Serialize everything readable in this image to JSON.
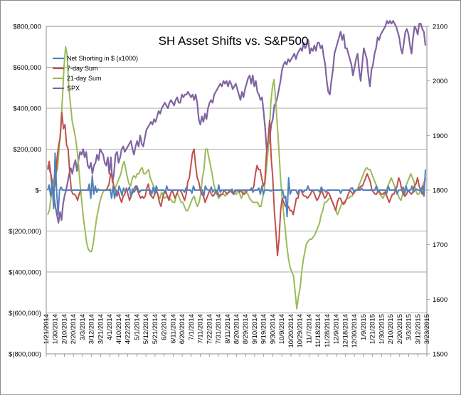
{
  "chart_data": {
    "type": "line",
    "title": "SH Asset Shifts vs. S&P500",
    "xlabel": "",
    "ylabel": "",
    "y_left_ticks": [
      "$800,000",
      "$600,000",
      "$400,000",
      "$200,000",
      "$-",
      "$(200,000)",
      "$(400,000)",
      "$(600,000)",
      "$(800,000)"
    ],
    "y_left_lim": [
      -800000,
      800000
    ],
    "y_right_ticks": [
      "2100",
      "2000",
      "1900",
      "1800",
      "1700",
      "1600",
      "1500"
    ],
    "y_right_lim": [
      1500,
      2100
    ],
    "x_tick_labels": [
      "1/21/2014",
      "1/30/2014",
      "2/10/2014",
      "2/20/2014",
      "3/3/2014",
      "3/12/2014",
      "3/21/2014",
      "4/1/2014",
      "4/10/2014",
      "4/22/2014",
      "5/1/2014",
      "5/12/2014",
      "5/21/2014",
      "6/2/2014",
      "6/11/2014",
      "6/20/2014",
      "7/1/2014",
      "7/11/2014",
      "7/22/2014",
      "7/31/2014",
      "8/11/2014",
      "8/20/2014",
      "8/29/2014",
      "9/10/2014",
      "9/19/2014",
      "9/30/2014",
      "10/9/2014",
      "10/20/2014",
      "10/29/2014",
      "11/7/2014",
      "11/18/2014",
      "11/28/2014",
      "12/9/2014",
      "12/18/2014",
      "12/30/2014",
      "1/9/2015",
      "1/21/2015",
      "1/30/2015",
      "2/10/2015",
      "2/20/2015",
      "3/3/2015",
      "3/12/2015",
      "3/23/2015"
    ],
    "grid": true,
    "legend_position": "top-left",
    "series": [
      {
        "name": "Net Shorting in $ (x1000)",
        "axis": "left",
        "color": "#4f81bd",
        "values": [
          0,
          25000,
          -30000,
          40000,
          -90000,
          180000,
          0,
          -120000,
          0,
          15000,
          0,
          0,
          0,
          0,
          0,
          0,
          0,
          0,
          0,
          0,
          0,
          0,
          0,
          0,
          0,
          0,
          0,
          0,
          30000,
          -40000,
          70000,
          -20000,
          20000,
          -10000,
          5000,
          0,
          0,
          0,
          0,
          0,
          0,
          0,
          5000,
          -40000,
          20000,
          -40000,
          0,
          -20000,
          20000,
          0,
          -25000,
          10000,
          -5000,
          0,
          0,
          15000,
          -35000,
          5000,
          -10000,
          0,
          20000,
          0,
          -10000,
          0,
          0,
          0,
          0,
          0,
          0,
          0,
          -20000,
          15000,
          -20000,
          20000,
          0,
          0,
          0,
          0,
          0,
          -15000,
          20000,
          0,
          0,
          0,
          0,
          0,
          0,
          0,
          0,
          0,
          0,
          0,
          -10000,
          10000,
          0,
          0,
          0,
          -15000,
          20000,
          0,
          0,
          0,
          0,
          0,
          0,
          -30000,
          20000,
          5000,
          0,
          0,
          15000,
          -10000,
          0,
          0,
          -20000,
          25000,
          -10000,
          0,
          0,
          0,
          0,
          0,
          0,
          0,
          5000,
          -20000,
          0,
          0,
          0,
          0,
          0,
          0,
          0,
          0,
          0,
          0,
          0,
          10000,
          -10000,
          0,
          0,
          0,
          10000,
          -20000,
          20000,
          -20000,
          0,
          0,
          0,
          0,
          -5000,
          0,
          0,
          0,
          0,
          0,
          0,
          0,
          0,
          -40000,
          -30000,
          -130000,
          60000,
          -20000,
          0,
          0,
          0,
          0,
          -20000,
          0,
          0,
          0,
          -10000,
          0,
          0,
          20000,
          0,
          0,
          0,
          0,
          0,
          0,
          0,
          -10000,
          15000,
          0,
          0,
          -10000,
          0,
          0,
          0,
          0,
          0,
          0,
          0,
          0,
          0,
          -15000,
          0,
          0,
          0,
          0,
          0,
          0,
          10000,
          10000,
          -10000,
          0,
          0,
          0,
          0,
          10000,
          0,
          0,
          0,
          0,
          0,
          0,
          0,
          0,
          0,
          20000,
          -10000,
          0,
          0,
          0,
          0,
          0,
          -15000,
          20000,
          0,
          0,
          0,
          0,
          10000,
          -20000,
          0,
          0,
          0,
          15000,
          -20000,
          20000,
          -10000,
          0,
          0,
          20000,
          -10000,
          0,
          5000,
          0,
          0,
          -5000,
          20000,
          -30000,
          100000
        ]
      },
      {
        "name": "7-day Sum",
        "axis": "left",
        "color": "#c0504d",
        "values": [
          100000,
          140000,
          80000,
          -20000,
          0,
          40000,
          160000,
          220000,
          260000,
          380000,
          300000,
          320000,
          220000,
          200000,
          90000,
          0,
          -20000,
          -20000,
          -30000,
          -50000,
          -20000,
          0,
          0,
          0,
          0,
          0,
          0,
          0,
          0,
          0,
          0,
          0,
          0,
          0,
          0,
          0,
          0,
          0,
          10000,
          30000,
          80000,
          60000,
          20000,
          0,
          -30000,
          -10000,
          -40000,
          -60000,
          -30000,
          -20000,
          10000,
          -20000,
          -50000,
          -30000,
          -10000,
          10000,
          20000,
          0,
          -20000,
          -40000,
          -30000,
          -40000,
          -30000,
          10000,
          30000,
          -20000,
          -30000,
          -40000,
          -20000,
          0,
          -20000,
          -60000,
          -80000,
          -40000,
          -10000,
          0,
          -30000,
          -50000,
          -20000,
          0,
          -20000,
          -40000,
          -20000,
          0,
          0,
          -10000,
          -30000,
          -50000,
          -20000,
          40000,
          60000,
          120000,
          180000,
          200000,
          120000,
          60000,
          40000,
          0,
          -20000,
          -30000,
          -60000,
          -40000,
          -20000,
          0,
          -20000,
          -30000,
          -20000,
          0,
          -10000,
          -30000,
          -20000,
          -20000,
          0,
          -10000,
          -20000,
          -10000,
          0,
          -10000,
          -20000,
          -10000,
          0,
          0,
          -10000,
          0,
          -20000,
          -20000,
          -10000,
          0,
          0,
          0,
          0,
          20000,
          80000,
          120000,
          100000,
          100000,
          60000,
          20000,
          40000,
          180000,
          240000,
          340000,
          160000,
          60000,
          -100000,
          -200000,
          -320000,
          -240000,
          -100000,
          -40000,
          -60000,
          -80000,
          -80000,
          -80000,
          -100000,
          -100000,
          -120000,
          -80000,
          -40000,
          -40000,
          0,
          0,
          -20000,
          -30000,
          -30000,
          -40000,
          -30000,
          -20000,
          0,
          -10000,
          -30000,
          -50000,
          -40000,
          -20000,
          0,
          -20000,
          -40000,
          -30000,
          -10000,
          -20000,
          -40000,
          -60000,
          -80000,
          -100000,
          -60000,
          -40000,
          -40000,
          -60000,
          -70000,
          -60000,
          -40000,
          -20000,
          0,
          -10000,
          -20000,
          -10000,
          0,
          0,
          10000,
          20000,
          20000,
          40000,
          60000,
          80000,
          60000,
          40000,
          0,
          -10000,
          -20000,
          -20000,
          0,
          -10000,
          -20000,
          -20000,
          -10000,
          -20000,
          -40000,
          -60000,
          -40000,
          -20000,
          -20000,
          0,
          20000,
          60000,
          40000,
          0,
          -20000,
          -30000,
          -20000,
          0,
          -10000,
          -20000,
          -10000,
          20000,
          30000,
          60000,
          20000,
          0,
          -20000,
          10000,
          60000
        ]
      },
      {
        "name": "21-day Sum",
        "axis": "left",
        "color": "#9bbb59",
        "values": [
          -120000,
          -100000,
          -40000,
          20000,
          60000,
          80000,
          100000,
          200000,
          300000,
          440000,
          600000,
          700000,
          660000,
          500000,
          420000,
          340000,
          300000,
          260000,
          200000,
          120000,
          20000,
          -60000,
          -140000,
          -200000,
          -260000,
          -290000,
          -300000,
          -300000,
          -260000,
          -200000,
          -140000,
          -100000,
          -60000,
          -30000,
          -10000,
          0,
          0,
          0,
          0,
          0,
          0,
          0,
          20000,
          40000,
          60000,
          80000,
          120000,
          140000,
          100000,
          60000,
          30000,
          20000,
          60000,
          70000,
          60000,
          80000,
          80000,
          100000,
          110000,
          80000,
          80000,
          90000,
          100000,
          60000,
          40000,
          20000,
          0,
          -10000,
          -30000,
          -40000,
          -10000,
          -30000,
          -40000,
          -30000,
          -30000,
          -40000,
          -50000,
          -60000,
          -60000,
          -20000,
          -20000,
          -40000,
          -60000,
          -60000,
          -80000,
          -100000,
          -100000,
          -80000,
          -60000,
          -40000,
          -30000,
          -60000,
          -80000,
          -60000,
          -20000,
          60000,
          100000,
          200000,
          200000,
          160000,
          120000,
          80000,
          30000,
          0,
          -20000,
          -40000,
          -30000,
          -20000,
          -20000,
          -30000,
          -20000,
          -10000,
          -10000,
          0,
          -10000,
          -20000,
          -20000,
          0,
          -20000,
          -40000,
          -20000,
          0,
          -10000,
          -20000,
          -40000,
          -50000,
          -60000,
          -60000,
          -60000,
          -60000,
          -80000,
          -80000,
          -40000,
          0,
          80000,
          160000,
          260000,
          420000,
          500000,
          540000,
          440000,
          320000,
          200000,
          60000,
          -40000,
          -120000,
          -200000,
          -280000,
          -340000,
          -380000,
          -400000,
          -420000,
          -500000,
          -580000,
          -520000,
          -480000,
          -400000,
          -340000,
          -300000,
          -260000,
          -250000,
          -240000,
          -240000,
          -230000,
          -220000,
          -200000,
          -180000,
          -160000,
          -120000,
          -100000,
          -60000,
          -60000,
          -50000,
          -40000,
          -40000,
          -60000,
          -80000,
          -100000,
          -120000,
          -100000,
          -80000,
          -60000,
          -60000,
          -50000,
          -40000,
          -40000,
          -30000,
          -30000,
          -10000,
          0,
          0,
          20000,
          40000,
          60000,
          80000,
          100000,
          110000,
          100000,
          100000,
          80000,
          60000,
          40000,
          20000,
          0,
          -20000,
          -30000,
          -40000,
          -20000,
          0,
          20000,
          40000,
          60000,
          40000,
          20000,
          0,
          -20000,
          -40000,
          -50000,
          -20000,
          0,
          20000,
          40000,
          60000,
          80000,
          60000,
          40000,
          0,
          -20000,
          -20000,
          0,
          10000,
          40000,
          50000
        ]
      },
      {
        "name": "SPX",
        "axis": "right",
        "color": "#8064a2",
        "values": [
          1845,
          1840,
          1830,
          1815,
          1790,
          1770,
          1755,
          1740,
          1760,
          1745,
          1775,
          1790,
          1800,
          1815,
          1830,
          1840,
          1830,
          1845,
          1855,
          1835,
          1855,
          1870,
          1865,
          1875,
          1860,
          1870,
          1845,
          1840,
          1850,
          1830,
          1845,
          1850,
          1865,
          1855,
          1875,
          1870,
          1865,
          1850,
          1845,
          1860,
          1830,
          1860,
          1815,
          1830,
          1865,
          1870,
          1850,
          1860,
          1875,
          1880,
          1870,
          1875,
          1880,
          1885,
          1890,
          1875,
          1865,
          1880,
          1890,
          1880,
          1900,
          1885,
          1880,
          1895,
          1910,
          1915,
          1920,
          1925,
          1920,
          1930,
          1925,
          1935,
          1945,
          1940,
          1950,
          1955,
          1960,
          1955,
          1950,
          1960,
          1965,
          1960,
          1955,
          1965,
          1970,
          1960,
          1960,
          1975,
          1970,
          1975,
          1975,
          1980,
          1975,
          1970,
          1975,
          1965,
          1975,
          1960,
          1930,
          1920,
          1935,
          1925,
          1940,
          1930,
          1950,
          1960,
          1965,
          1960,
          1975,
          1980,
          1985,
          1990,
          1995,
          1990,
          2000,
          1995,
          2000,
          1990,
          2000,
          1995,
          1985,
          1990,
          1995,
          1985,
          1975,
          1965,
          1980,
          1970,
          1985,
          1995,
          2005,
          2010,
          1995,
          2010,
          1990,
          2000,
          1980,
          1975,
          1965,
          1970,
          1945,
          1915,
          1875,
          1880,
          1895,
          1920,
          1930,
          1955,
          1960,
          1970,
          1985,
          2000,
          2020,
          2030,
          2035,
          2030,
          2040,
          2035,
          2040,
          2045,
          2050,
          2040,
          2050,
          2055,
          2060,
          2055,
          2070,
          2060,
          2065,
          2075,
          2050,
          2060,
          2055,
          2065,
          2055,
          2070,
          2070,
          2060,
          2065,
          2045,
          2030,
          2000,
          1980,
          1975,
          2000,
          2020,
          2050,
          2060,
          2070,
          2080,
          2090,
          2075,
          2085,
          2060,
          2060,
          2050,
          2040,
          2030,
          2010,
          2025,
          2040,
          2050,
          2020,
          2000,
          2030,
          2060,
          2050,
          2040,
          2010,
          1990,
          2020,
          2030,
          2050,
          2060,
          2080,
          2075,
          2085,
          2090,
          2095,
          2100,
          2110,
          2105,
          2110,
          2105,
          2110,
          2105,
          2100,
          2090,
          2080,
          2060,
          2050,
          2070,
          2090,
          2095,
          2085,
          2065,
          2050,
          2080,
          2100,
          2095,
          2085,
          2105,
          2105,
          2095,
          2090,
          2065
        ]
      }
    ]
  }
}
